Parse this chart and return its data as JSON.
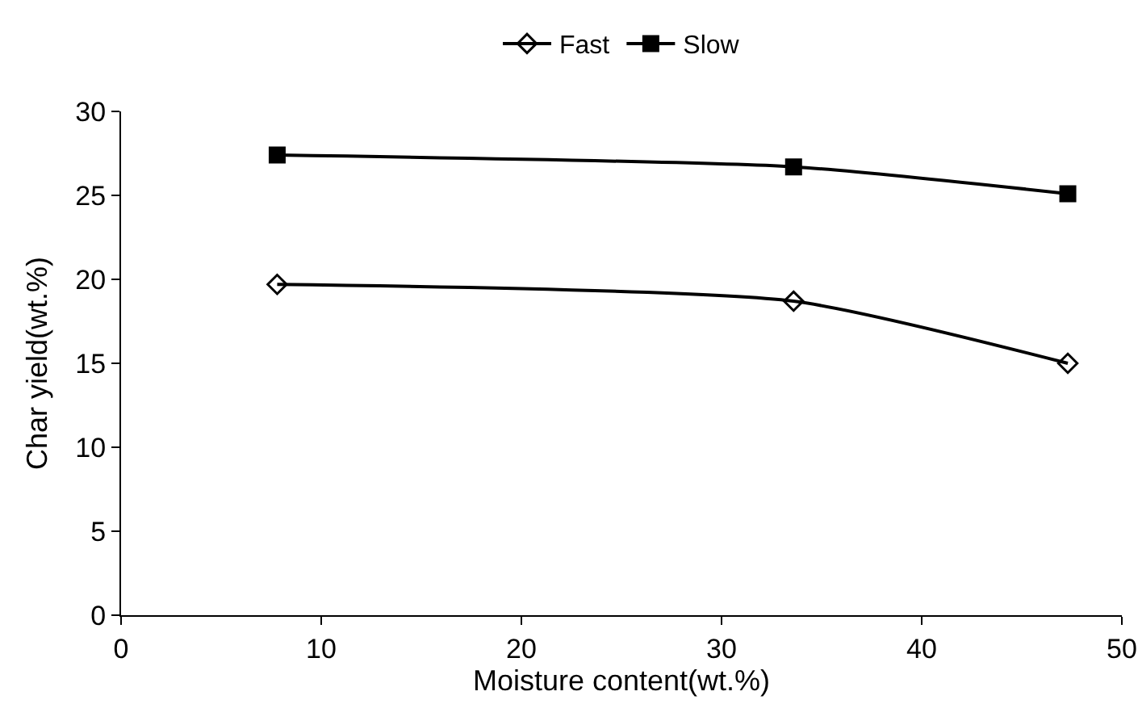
{
  "chart_data": {
    "type": "line",
    "xlabel": "Moisture content(wt.%)",
    "ylabel": "Char yield(wt.%)",
    "x": [
      7.8,
      33.6,
      47.3
    ],
    "series": [
      {
        "name": "Fast",
        "color": "#000000",
        "marker": "diamond",
        "values": [
          19.7,
          18.7,
          15
        ]
      },
      {
        "name": "Slow",
        "color": "#000000",
        "marker": "square",
        "values": [
          27.4,
          26.7,
          25.1
        ]
      }
    ],
    "xlim": [
      0,
      50
    ],
    "xticks": [
      0,
      10,
      20,
      30,
      40,
      50
    ],
    "ylim": [
      0,
      30
    ],
    "yticks": [
      0,
      5,
      10,
      15,
      20,
      25,
      30
    ],
    "grid": false,
    "legend": "top",
    "line_style": "solid"
  }
}
